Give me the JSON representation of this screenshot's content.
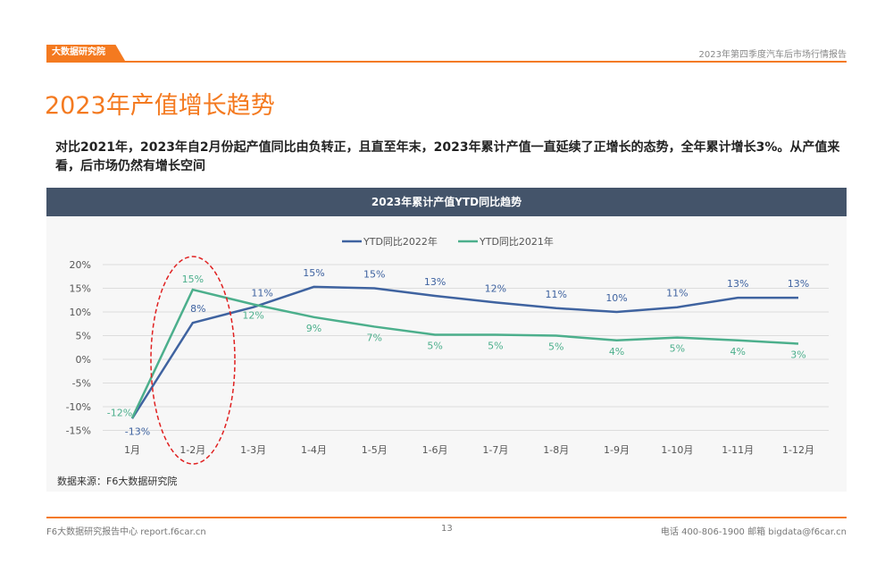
{
  "header": {
    "logo": "大数据研究院",
    "report": "2023年第四季度汽车后市场行情报告"
  },
  "title": "2023年产值增长趋势",
  "summary": "对比2021年，2023年自2月份起产值同比由负转正，且直至年末，2023年累计产值一直延续了正增长的态势，全年累计增长3%。从产值来看，后市场仍然有增长空间",
  "chart_title": "2023年累计产值YTD同比趋势",
  "source": "数据来源：F6大数据研究院",
  "footer": {
    "left": "F6大数据研究报告中心 report.f6car.cn",
    "page": "13",
    "right": "电话 400-806-1900  邮箱 bigdata@f6car.cn"
  },
  "chart_data": {
    "type": "line",
    "title": "2023年累计产值YTD同比趋势",
    "categories": [
      "1月",
      "1-2月",
      "1-3月",
      "1-4月",
      "1-5月",
      "1-6月",
      "1-7月",
      "1-8月",
      "1-9月",
      "1-10月",
      "1-11月",
      "1-12月"
    ],
    "yticks": [
      "20%",
      "15%",
      "10%",
      "5%",
      "0%",
      "-5%",
      "-10%",
      "-15%"
    ],
    "ylim": [
      -15,
      20
    ],
    "legend_position": "top-right",
    "series": [
      {
        "name": "YTD同比2022年",
        "color": "#3f63a0",
        "values": [
          -12.5,
          7.7,
          11,
          15.3,
          15,
          13.4,
          12,
          10.8,
          10,
          11,
          13,
          13
        ],
        "labels": [
          "-13%",
          "8%",
          "11%",
          "15%",
          "15%",
          "13%",
          "12%",
          "11%",
          "10%",
          "11%",
          "13%",
          "13%"
        ]
      },
      {
        "name": "YTD同比2021年",
        "color": "#4caf8c",
        "values": [
          -12.4,
          14.7,
          11.6,
          8.9,
          6.9,
          5.2,
          5.2,
          5,
          4,
          4.6,
          4,
          3.3
        ],
        "labels": [
          "-12%",
          "15%",
          "12%",
          "9%",
          "7%",
          "5%",
          "5%",
          "5%",
          "4%",
          "5%",
          "4%",
          "3%"
        ]
      }
    ]
  }
}
